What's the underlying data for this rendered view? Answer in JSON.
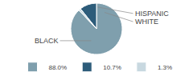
{
  "chart_data": {
    "type": "pie",
    "categories": [
      "88.0%",
      "10.7%",
      "1.3%"
    ],
    "values": [
      88.0,
      10.7,
      1.3
    ],
    "colors": [
      "#7f9fad",
      "#2d5c7a",
      "#c8d8e0"
    ],
    "annotations": [
      "BLACK",
      "WHITE",
      "HISPANIC"
    ],
    "legend": "bottom"
  }
}
